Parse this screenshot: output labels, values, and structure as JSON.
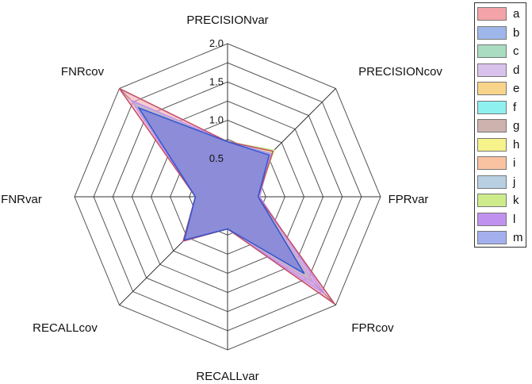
{
  "chart_data": {
    "type": "radar",
    "axes": [
      "PRECISIONvar",
      "PRECISIONcov",
      "FPRvar",
      "FPRcov",
      "RECALLvar",
      "RECALLcov",
      "FNRvar",
      "FNRcov"
    ],
    "rlim": [
      0,
      2.0
    ],
    "ticks": [
      "0.5",
      "1.0",
      "1.5",
      "2.0"
    ],
    "grid": true,
    "legend_position": "top-right",
    "series": [
      {
        "name": "a",
        "color": "#f4a3a8",
        "values": [
          0.72,
          0.84,
          0.4,
          1.98,
          0.42,
          0.82,
          0.42,
          2.0
        ]
      },
      {
        "name": "b",
        "color": "#9fb6ea",
        "values": [
          0.72,
          0.77,
          0.4,
          1.42,
          0.42,
          0.8,
          0.42,
          1.64
        ]
      },
      {
        "name": "c",
        "color": "#a9dcc0",
        "values": [
          0.72,
          0.8,
          0.4,
          1.55,
          0.42,
          0.8,
          0.42,
          1.75
        ]
      },
      {
        "name": "d",
        "color": "#d9c2ec",
        "values": [
          0.72,
          0.78,
          0.4,
          1.6,
          0.42,
          0.8,
          0.42,
          1.72
        ]
      },
      {
        "name": "e",
        "color": "#f7d48a",
        "values": [
          0.72,
          0.8,
          0.4,
          1.5,
          0.42,
          0.8,
          0.42,
          1.7
        ]
      },
      {
        "name": "f",
        "color": "#8ff0f0",
        "values": [
          0.72,
          0.78,
          0.4,
          1.45,
          0.42,
          0.8,
          0.42,
          1.68
        ]
      },
      {
        "name": "g",
        "color": "#cdb2ae",
        "values": [
          0.72,
          0.8,
          0.4,
          1.58,
          0.42,
          0.8,
          0.42,
          1.74
        ]
      },
      {
        "name": "h",
        "color": "#f5f38a",
        "values": [
          0.72,
          0.84,
          0.4,
          1.5,
          0.42,
          0.8,
          0.42,
          1.7
        ]
      },
      {
        "name": "i",
        "color": "#f9c2a0",
        "values": [
          0.72,
          0.8,
          0.4,
          1.52,
          0.42,
          0.8,
          0.42,
          1.72
        ]
      },
      {
        "name": "j",
        "color": "#b9cfe2",
        "values": [
          0.72,
          0.79,
          0.4,
          1.48,
          0.42,
          0.8,
          0.42,
          1.69
        ]
      },
      {
        "name": "k",
        "color": "#cdeb8b",
        "values": [
          0.72,
          0.86,
          0.4,
          1.5,
          0.42,
          0.8,
          0.42,
          1.72
        ]
      },
      {
        "name": "l",
        "color": "#c191f0",
        "values": [
          0.72,
          0.8,
          0.42,
          1.8,
          0.42,
          0.8,
          0.42,
          1.78
        ]
      },
      {
        "name": "m",
        "color": "#a4b0ee",
        "values": [
          0.72,
          0.78,
          0.4,
          1.42,
          0.42,
          0.8,
          0.42,
          1.65
        ]
      }
    ]
  }
}
